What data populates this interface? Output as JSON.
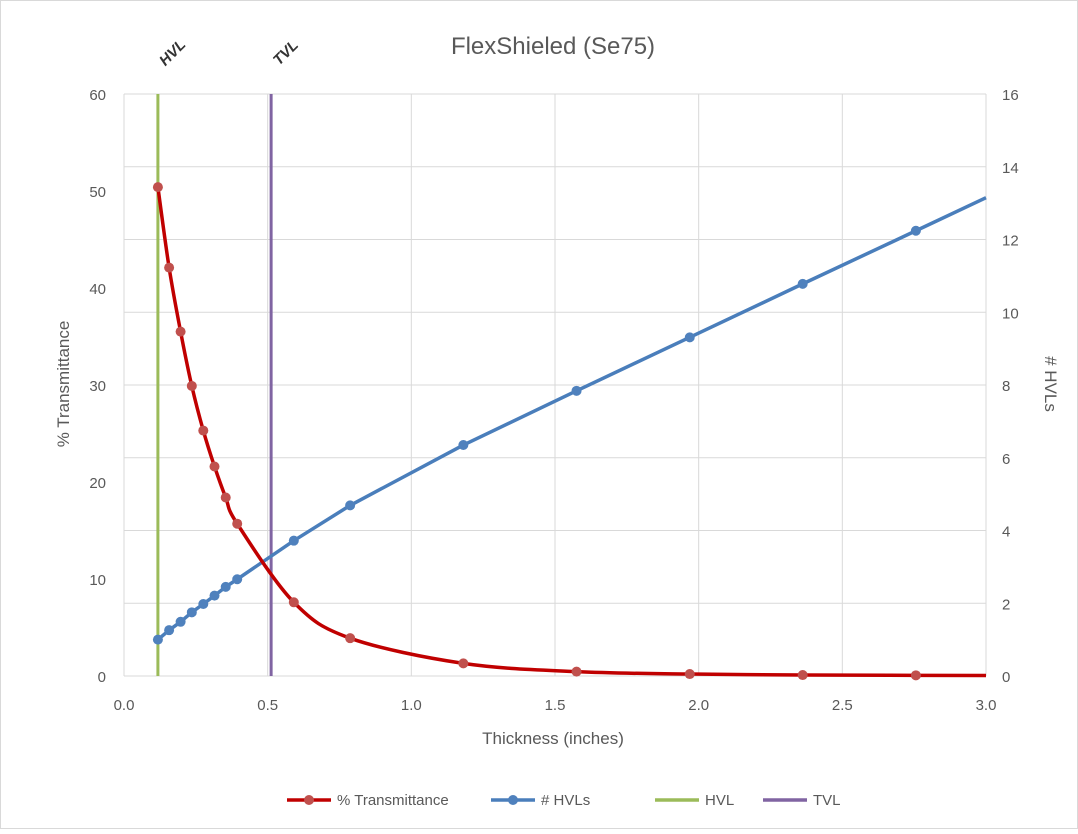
{
  "chart_data": {
    "type": "line",
    "title": "FlexShieled (Se75)",
    "xlabel": "Thickness (inches)",
    "ylabel": "% Transmittance",
    "y2label": "# HVLs",
    "xlim": [
      0,
      3
    ],
    "ylim": [
      0,
      60
    ],
    "y2lim": [
      0,
      16
    ],
    "x_ticks": [
      "0.0",
      "0.5",
      "1.0",
      "1.5",
      "2.0",
      "2.5",
      "3.0"
    ],
    "y_ticks": [
      "0",
      "10",
      "20",
      "30",
      "40",
      "50",
      "60"
    ],
    "y2_ticks": [
      "0",
      "2",
      "4",
      "6",
      "8",
      "10",
      "12",
      "14",
      "16"
    ],
    "grid": true,
    "legend_position": "bottom",
    "series": [
      {
        "name": "% Transmittance",
        "axis": "left",
        "color": "#c00000",
        "marker_color": "#c0504d",
        "x": [
          0.118,
          0.157,
          0.197,
          0.236,
          0.276,
          0.315,
          0.354,
          0.394,
          0.591,
          0.787,
          1.181,
          1.575,
          1.969,
          2.362,
          2.756,
          3.0
        ],
        "y": [
          50.4,
          42.1,
          35.5,
          29.9,
          25.3,
          21.6,
          18.4,
          15.7,
          7.6,
          3.9,
          1.3,
          0.45,
          0.2,
          0.1,
          0.07,
          0.05
        ]
      },
      {
        "name": "# HVLs",
        "axis": "right",
        "color": "#4a7ebb",
        "marker_color": "#4f81bd",
        "x": [
          0.118,
          0.157,
          0.197,
          0.236,
          0.276,
          0.315,
          0.354,
          0.394,
          0.591,
          0.787,
          1.181,
          1.575,
          1.969,
          2.362,
          2.756,
          3.0
        ],
        "y": [
          1.0,
          1.26,
          1.49,
          1.75,
          1.98,
          2.21,
          2.45,
          2.66,
          3.72,
          4.69,
          6.35,
          7.84,
          9.31,
          10.78,
          12.24,
          13.15
        ]
      },
      {
        "name": "HVL",
        "axis": "left",
        "color": "#9bbb59",
        "x": [
          0.118,
          0.118
        ],
        "y": [
          0,
          60
        ]
      },
      {
        "name": "TVL",
        "axis": "left",
        "color": "#8064a2",
        "x": [
          0.512,
          0.512
        ],
        "y": [
          0,
          60
        ]
      }
    ],
    "annotations": [
      {
        "text": "HVL",
        "x": 0.118
      },
      {
        "text": "TVL",
        "x": 0.512
      }
    ]
  }
}
